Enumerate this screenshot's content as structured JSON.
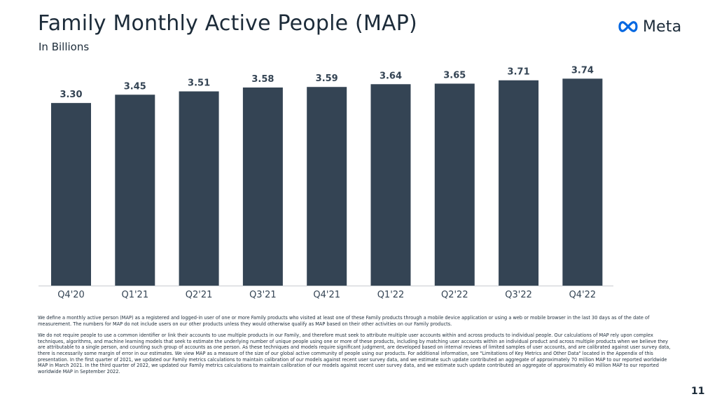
{
  "header": {
    "title": "Family Monthly Active People (MAP)",
    "subtitle": "In Billions",
    "brand": "Meta"
  },
  "colors": {
    "bar": "#344454",
    "text": "#1c2b39",
    "logo_blue": "#0668e1"
  },
  "icons": {
    "logo": "meta-infinity-icon"
  },
  "chart_data": {
    "type": "bar",
    "title": "Family Monthly Active People (MAP)",
    "subtitle": "In Billions",
    "categories": [
      "Q4'20",
      "Q1'21",
      "Q2'21",
      "Q3'21",
      "Q4'21",
      "Q1'22",
      "Q2'22",
      "Q3'22",
      "Q4'22"
    ],
    "values": [
      3.3,
      3.45,
      3.51,
      3.58,
      3.59,
      3.64,
      3.65,
      3.71,
      3.74
    ],
    "data_labels": [
      "3.30",
      "3.45",
      "3.51",
      "3.58",
      "3.59",
      "3.64",
      "3.65",
      "3.71",
      "3.74"
    ],
    "xlabel": "",
    "ylabel": "",
    "ylim": [
      0,
      4.2
    ],
    "grid": false,
    "legend": "none"
  },
  "notes": [
    "We define a monthly active person (MAP) as a registered and logged-in user of one or more Family products who visited at least one of these Family products through a mobile device application or using a web or mobile browser in the last 30 days as of the date of measurement.  The numbers for MAP do not include users on our other products unless they would otherwise qualify as MAP based on their other activities on our Family products.",
    "We do not require people to use a common identifier or link their accounts to use multiple products in our Family, and therefore must seek to attribute multiple user accounts within and across products to individual people. Our calculations of MAP rely upon complex techniques, algorithms, and machine learning models that seek to estimate the underlying number of unique people using one or more of these products, including by matching user accounts within an individual product and across multiple products when we believe they are attributable to a single person, and counting such group of accounts as one person. As these techniques and models require significant judgment, are developed based on internal reviews of limited samples of user accounts, and are calibrated against user survey data, there is necessarily some margin of error in our estimates. We view MAP as a measure of the size of our global active community of people using our products. For additional information, see \"Limitations of Key Metrics and Other Data\" located in the Appendix of this presentation. In the first quarter of 2021, we updated our Family metrics calculations to maintain calibration of our models against recent user survey data, and we estimate such update contributed an aggregate of approximately 70 million MAP to our reported worldwide MAP in March 2021. In the third quarter of 2022, we updated our Family metrics calculations to maintain calibration of our models against recent user survey data, and we estimate such update contributed an aggregate of approximately 40 million MAP to our reported worldwide MAP in September 2022."
  ],
  "footer": {
    "page_number": "11"
  }
}
